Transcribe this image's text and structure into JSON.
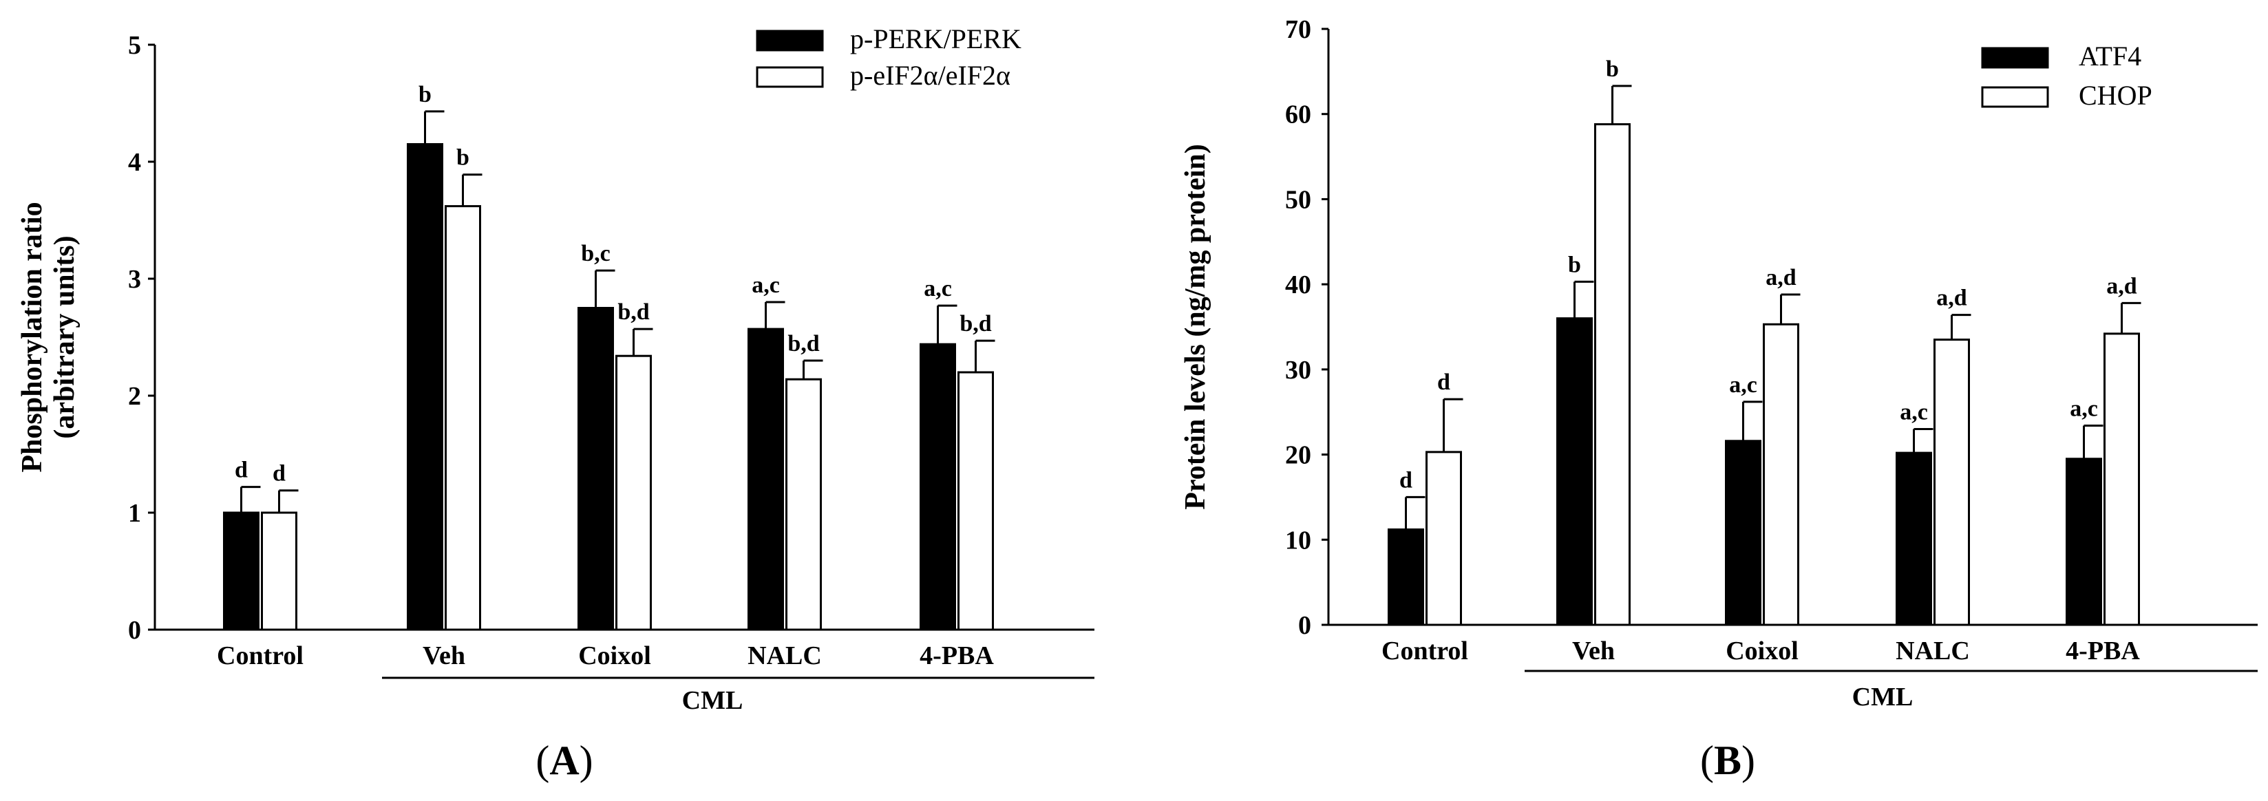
{
  "chart_data": [
    {
      "type": "bar",
      "panel": "A",
      "title": "",
      "xlabel": "",
      "ylabel": "Phosphorylation ratio",
      "ylabel2": "(arbitrary units)",
      "ylim": [
        0,
        5
      ],
      "yticks": [
        0,
        1,
        2,
        3,
        4,
        5
      ],
      "categories": [
        "Control",
        "Veh",
        "Coixol",
        "NALC",
        "4-PBA"
      ],
      "group_label": "CML",
      "grid": false,
      "legend_position": "top-right",
      "series": [
        {
          "name": "p-PERK/PERK",
          "color": "#000000",
          "values": [
            1.0,
            4.15,
            2.75,
            2.57,
            2.44
          ],
          "errors": [
            0.22,
            0.28,
            0.32,
            0.23,
            0.33
          ],
          "labels": [
            "d",
            "b",
            "b,c",
            "a,c",
            "a,c"
          ]
        },
        {
          "name": "p-eIF2α/eIF2α",
          "color": "#ffffff",
          "values": [
            1.0,
            3.62,
            2.34,
            2.14,
            2.2
          ],
          "errors": [
            0.19,
            0.27,
            0.23,
            0.16,
            0.27
          ],
          "labels": [
            "d",
            "b",
            "b,d",
            "b,d",
            "b,d"
          ]
        }
      ]
    },
    {
      "type": "bar",
      "panel": "B",
      "title": "",
      "xlabel": "",
      "ylabel": "Protein levels (ng/mg protein)",
      "ylim": [
        0,
        70
      ],
      "yticks": [
        0,
        10,
        20,
        30,
        40,
        50,
        60,
        70
      ],
      "categories": [
        "Control",
        "Veh",
        "Coixol",
        "NALC",
        "4-PBA"
      ],
      "group_label": "CML",
      "grid": false,
      "legend_position": "top-right",
      "series": [
        {
          "name": "ATF4",
          "color": "#000000",
          "values": [
            11.2,
            36.0,
            21.6,
            20.2,
            19.5
          ],
          "errors": [
            3.8,
            4.3,
            4.6,
            2.8,
            3.9
          ],
          "labels": [
            "d",
            "b",
            "a,c",
            "a,c",
            "a,c"
          ]
        },
        {
          "name": "CHOP",
          "color": "#ffffff",
          "values": [
            20.3,
            58.8,
            35.3,
            33.5,
            34.2
          ],
          "errors": [
            6.2,
            4.5,
            3.5,
            2.9,
            3.6
          ],
          "labels": [
            "d",
            "b",
            "a,d",
            "a,d",
            "a,d"
          ]
        }
      ]
    }
  ],
  "panel_labels": {
    "a": "(A)",
    "b": "(B)"
  }
}
